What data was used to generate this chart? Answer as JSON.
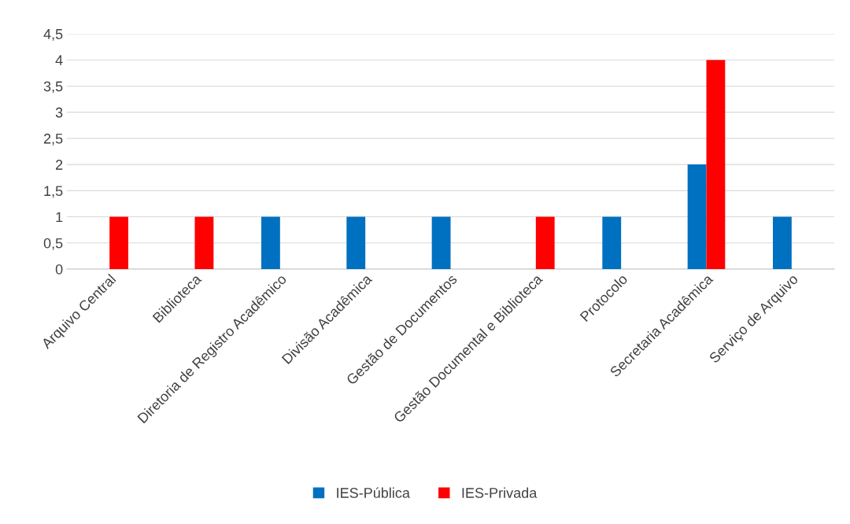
{
  "chart_data": {
    "type": "bar",
    "categories": [
      "Arquivo Central",
      "Biblioteca",
      "Diretoria de Registro Acadêmico",
      "Divisão Acadêmica",
      "Gestão de Documentos",
      "Gestão Documental e Biblioteca",
      "Protocolo",
      "Secretaria Acadêmica",
      "Serviço de Arquivo"
    ],
    "series": [
      {
        "name": "IES-Pública",
        "color": "#0070c0",
        "values": [
          0,
          0,
          1,
          1,
          1,
          0,
          1,
          2,
          1
        ]
      },
      {
        "name": "IES-Privada",
        "color": "#ff0000",
        "values": [
          1,
          1,
          0,
          0,
          0,
          1,
          0,
          4,
          0
        ]
      }
    ],
    "ylim": [
      0,
      4.5
    ],
    "yticks": [
      0,
      {
        "value": 0.5,
        "label": "0,5"
      },
      1,
      {
        "value": 1.5,
        "label": "1,5"
      },
      2,
      {
        "value": 2.5,
        "label": "2,5"
      },
      3,
      {
        "value": 3.5,
        "label": "3,5"
      },
      4,
      {
        "value": 4.5,
        "label": "4,5"
      }
    ],
    "grid": "y",
    "legend": "bottom"
  }
}
